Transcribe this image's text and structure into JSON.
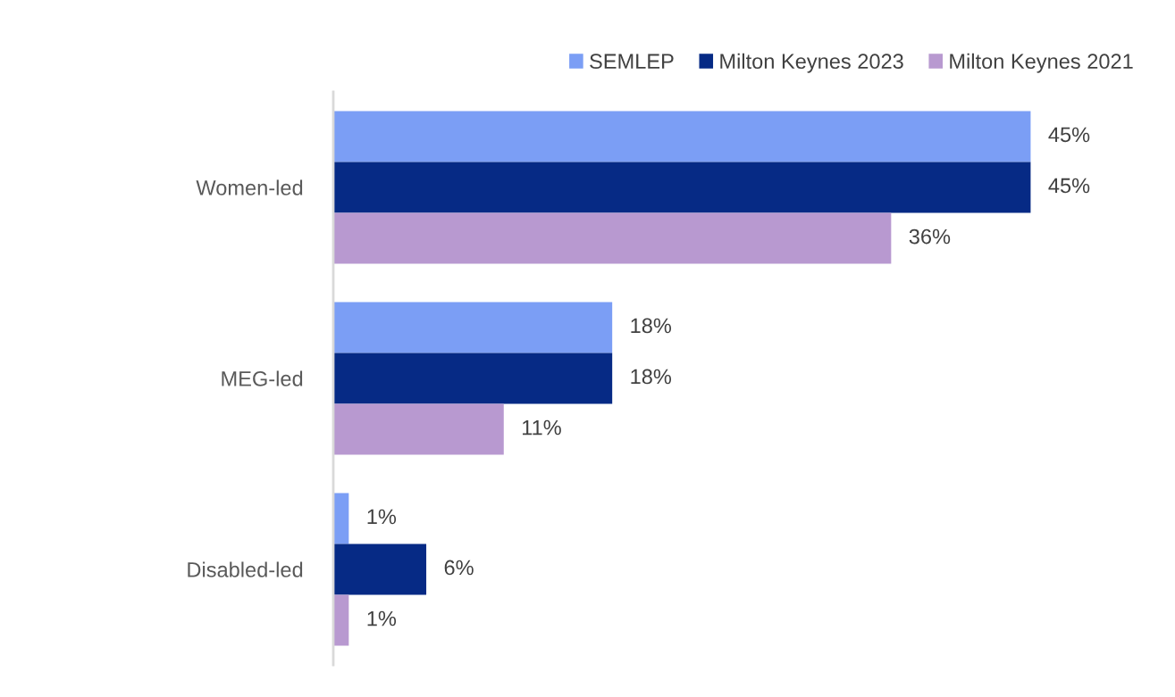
{
  "chart_data": {
    "type": "bar",
    "orientation": "horizontal",
    "categories": [
      "Women-led",
      "MEG-led",
      "Disabled-led"
    ],
    "series": [
      {
        "name": "SEMLEP",
        "color": "#7b9ef5",
        "values": [
          45,
          18,
          1
        ],
        "value_labels": [
          "45%",
          "18%",
          "1%"
        ]
      },
      {
        "name": "Milton Keynes 2023",
        "color": "#062a85",
        "values": [
          45,
          18,
          6
        ],
        "value_labels": [
          "45%",
          "18%",
          "6%"
        ]
      },
      {
        "name": "Milton Keynes 2021",
        "color": "#b899d0",
        "values": [
          36,
          11,
          1
        ],
        "value_labels": [
          "36%",
          "11%",
          "1%"
        ]
      }
    ],
    "tick_labels": "y",
    "grid": false,
    "legend": "top right"
  }
}
